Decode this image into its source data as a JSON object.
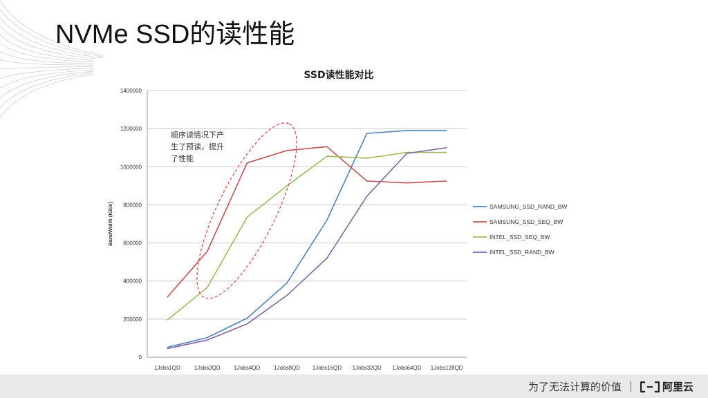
{
  "slide": {
    "title": "NVMe SSD的读性能"
  },
  "annotation": {
    "lines": [
      "顺序读情况下产",
      "生了预读，提升",
      "了性能"
    ]
  },
  "footer": {
    "slogan": "为了无法计算的价值",
    "brand": "阿里云"
  },
  "chart_data": {
    "type": "line",
    "title": "SSD读性能对比",
    "xlabel": "",
    "ylabel": "BandWidth (KB/s)",
    "categories": [
      "1Jobs1QD",
      "1Jobs2QD",
      "1Jobs4QD",
      "1Jobs8QD",
      "1Jobs16QD",
      "1Jobs32QD",
      "1Jobs64QD",
      "1Jobs128QD"
    ],
    "ylim": [
      0,
      1400000
    ],
    "yticks": [
      0,
      200000,
      400000,
      600000,
      800000,
      1000000,
      1200000,
      1400000
    ],
    "grid": true,
    "legend_position": "right",
    "series": [
      {
        "name": "SAMSUNG_SSD_RAND_BW",
        "color": "#4f81bd",
        "values": [
          52000,
          103000,
          205000,
          390000,
          720000,
          1175000,
          1190000,
          1190000
        ]
      },
      {
        "name": "SAMSUNG_SSD_SEQ_BW",
        "color": "#c0504d",
        "values": [
          315000,
          555000,
          1020000,
          1085000,
          1105000,
          925000,
          915000,
          925000
        ]
      },
      {
        "name": "INTEL_SSD_SEQ_BW",
        "color": "#9bbb59",
        "values": [
          195000,
          365000,
          735000,
          900000,
          1055000,
          1045000,
          1075000,
          1075000
        ]
      },
      {
        "name": "INTEL_SSD_RAND_BW",
        "color": "#8064a2",
        "values": [
          45000,
          90000,
          175000,
          325000,
          520000,
          845000,
          1070000,
          1100000
        ]
      }
    ]
  }
}
